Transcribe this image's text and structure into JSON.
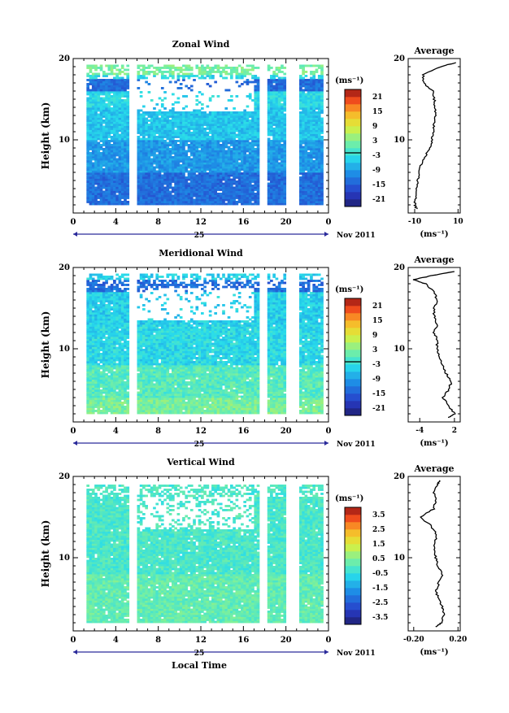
{
  "chart_data": [
    {
      "type": "heatmap",
      "title": "Zonal Wind",
      "ylabel": "Height (km)",
      "ylim": [
        1,
        20
      ],
      "yticks": [
        "20",
        "10"
      ],
      "xticks": [
        "0",
        "4",
        "8",
        "12",
        "16",
        "20",
        "0"
      ],
      "day_label": "25",
      "month_label": "Nov 2011",
      "colorbar": {
        "unit": "(ms⁻¹)",
        "ticks": [
          "21",
          "15",
          "9",
          "3",
          "-3",
          "-9",
          "-15",
          "-21"
        ],
        "range": [
          -24,
          24
        ]
      },
      "average": {
        "title": "Average",
        "yticks": [
          "20",
          "10"
        ],
        "xticks": [
          "-10",
          "10"
        ],
        "xlim": [
          -13,
          11
        ],
        "unit": "(ms⁻¹)",
        "profile": {
          "height": [
            1.5,
            2,
            3,
            4,
            5,
            6,
            7,
            8,
            9,
            10,
            11,
            12,
            13,
            14,
            15,
            16,
            17,
            18,
            19,
            19.5
          ],
          "value": [
            -9,
            -10,
            -9.5,
            -9,
            -8.5,
            -8,
            -7,
            -5,
            -3,
            -2,
            -1.5,
            -1,
            -0.5,
            -0.5,
            -1,
            -1.5,
            -6,
            -6,
            2,
            9
          ]
        }
      }
    },
    {
      "type": "heatmap",
      "title": "Meridional Wind",
      "ylabel": "Height (km)",
      "ylim": [
        1,
        20
      ],
      "yticks": [
        "20",
        "10"
      ],
      "xticks": [
        "0",
        "4",
        "8",
        "12",
        "16",
        "20",
        "0"
      ],
      "day_label": "25",
      "month_label": "Nov 2011",
      "colorbar": {
        "unit": "(ms⁻¹)",
        "ticks": [
          "21",
          "15",
          "9",
          "3",
          "-3",
          "-9",
          "-15",
          "-21"
        ],
        "range": [
          -24,
          24
        ]
      },
      "average": {
        "title": "Average",
        "yticks": [
          "20",
          "10"
        ],
        "xticks": [
          "-4",
          "2"
        ],
        "xlim": [
          -6,
          3
        ],
        "unit": "(ms⁻¹)",
        "profile": {
          "height": [
            1.5,
            2,
            3,
            4,
            5,
            6,
            7,
            8,
            9,
            10,
            11,
            12,
            13,
            14,
            15,
            16,
            17,
            18,
            18.5,
            19,
            19.5
          ],
          "value": [
            1,
            2,
            1,
            0,
            1,
            1.5,
            0.5,
            0,
            -0.5,
            -1,
            -1,
            -1.5,
            -1,
            -1.5,
            -1.5,
            -1,
            -1.5,
            -3,
            -5,
            -2,
            2
          ]
        }
      }
    },
    {
      "type": "heatmap",
      "title": "Vertical Wind",
      "ylabel": "Height (km)",
      "xlabel": "Local Time",
      "ylim": [
        1,
        20
      ],
      "yticks": [
        "20",
        "10"
      ],
      "xticks": [
        "0",
        "4",
        "8",
        "12",
        "16",
        "20",
        "0"
      ],
      "day_label": "25",
      "month_label": "Nov 2011",
      "colorbar": {
        "unit": "(ms⁻¹)",
        "ticks": [
          "3.5",
          "2.5",
          "1.5",
          "0.5",
          "-0.5",
          "-1.5",
          "-2.5",
          "-3.5"
        ],
        "range": [
          -4,
          4
        ]
      },
      "average": {
        "title": "Average",
        "yticks": [
          "20",
          "10"
        ],
        "xticks": [
          "-0.20",
          "0.20"
        ],
        "xlim": [
          -0.25,
          0.22
        ],
        "unit": "(ms⁻¹)",
        "profile": {
          "height": [
            1.5,
            2,
            3,
            4,
            5,
            6,
            7,
            8,
            9,
            10,
            11,
            12,
            13,
            14,
            15,
            16,
            17,
            18,
            19,
            19.5
          ],
          "value": [
            0.0,
            0.05,
            0.07,
            0.06,
            0.02,
            0.0,
            0.03,
            0.06,
            0.02,
            0.0,
            -0.02,
            0.0,
            0.0,
            -0.05,
            -0.14,
            -0.02,
            0.0,
            -0.02,
            0.02,
            0.03
          ]
        }
      }
    }
  ]
}
